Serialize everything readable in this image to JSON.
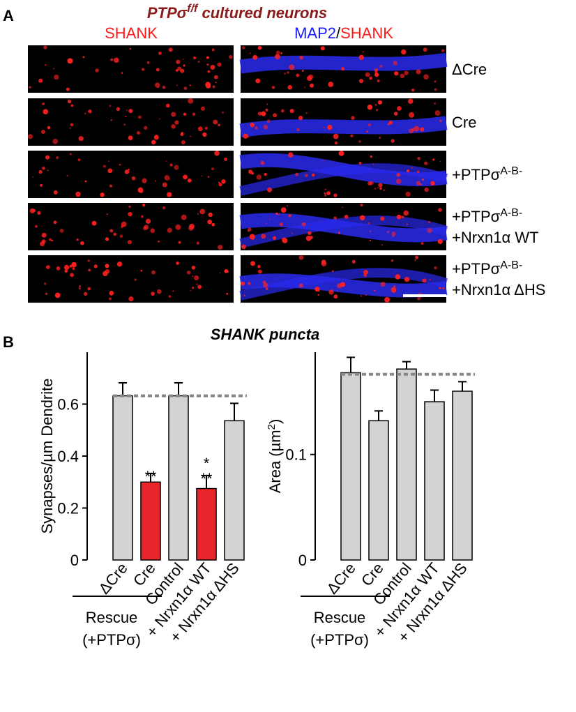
{
  "panel_a": {
    "label": "A",
    "title": [
      "PTPσ",
      "f/f",
      " cultured neurons"
    ],
    "columns": [
      [
        "SHANK"
      ],
      [
        "MAP2",
        "/",
        "SHANK"
      ]
    ],
    "rows": [
      [
        {
          "text": "ΔCre"
        }
      ],
      [
        {
          "text": "Cre"
        }
      ],
      [
        {
          "text": "+PTPσ",
          "sup": "A-B-"
        }
      ],
      [
        {
          "text": "+PTPσ",
          "sup": "A-B-"
        },
        {
          "text": "+Nrxn1α WT"
        }
      ],
      [
        {
          "text": "+PTPσ",
          "sup": "A-B-"
        },
        {
          "text": "+Nrxn1α ΔHS"
        }
      ]
    ]
  },
  "panel_b": {
    "label": "B",
    "title": "SHANK puncta",
    "rescue": "Rescue",
    "rescue_note": "(+PTPσ)",
    "charts": [
      {
        "type": "bar",
        "ylabel": [
          "Synapses/µm Dendrite"
        ],
        "categories": [
          "ΔCre",
          "Cre",
          "Control",
          "+ Nrxn1α WT",
          "+ Nrxn1α ΔHS"
        ],
        "values": [
          0.632,
          0.3,
          0.632,
          0.275,
          0.536
        ],
        "errors": [
          0.05,
          0.033,
          0.05,
          0.05,
          0.067
        ],
        "colors": [
          "#d3d3d3",
          "#e8262b",
          "#d3d3d3",
          "#e8262b",
          "#d3d3d3"
        ],
        "significance": [
          null,
          [
            "**"
          ],
          null,
          [
            "*",
            "**"
          ],
          null
        ],
        "reference_line": 0.632,
        "ylim": [
          0,
          0.8
        ],
        "yticks": [
          0,
          0.2,
          0.4,
          0.6
        ]
      },
      {
        "type": "bar",
        "ylabel": [
          "Area (µm",
          "2",
          ")"
        ],
        "categories": [
          "ΔCre",
          "Cre",
          "Control",
          "+ Nrxn1α WT",
          "+ Nrxn1α ΔHS"
        ],
        "values": [
          0.1775,
          0.132,
          0.181,
          0.15,
          0.16
        ],
        "errors": [
          0.0146,
          0.0093,
          0.007,
          0.011,
          0.009
        ],
        "colors": [
          "#d3d3d3",
          "#d3d3d3",
          "#d3d3d3",
          "#d3d3d3",
          "#d3d3d3"
        ],
        "significance": [
          null,
          null,
          null,
          null,
          null
        ],
        "reference_line": 0.176,
        "ylim": [
          0,
          0.197
        ],
        "yticks": [
          0,
          0.1
        ]
      }
    ]
  }
}
